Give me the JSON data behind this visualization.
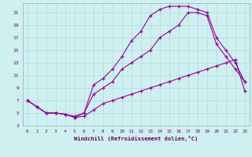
{
  "xlabel": "Windchill (Refroidissement éolien,°C)",
  "bg_color": "#cff0f0",
  "grid_color": "#aadddd",
  "line_color": "#990099",
  "xlim": [
    -0.5,
    23.5
  ],
  "ylim": [
    3,
    22.5
  ],
  "xticks": [
    0,
    1,
    2,
    3,
    4,
    5,
    6,
    7,
    8,
    9,
    10,
    11,
    12,
    13,
    14,
    15,
    16,
    17,
    18,
    19,
    20,
    21,
    22,
    23
  ],
  "yticks": [
    3,
    5,
    7,
    9,
    11,
    13,
    15,
    17,
    19,
    21
  ],
  "line1_x": [
    0,
    1,
    2,
    3,
    4,
    5,
    6,
    7,
    8,
    9,
    10,
    11,
    12,
    13,
    14,
    15,
    16,
    17,
    18,
    19,
    20,
    21,
    22,
    23
  ],
  "line1_y": [
    7,
    6,
    5,
    5,
    4.8,
    4.3,
    5,
    9.5,
    10.5,
    12,
    14,
    16.5,
    18,
    20.5,
    21.5,
    22,
    22,
    22,
    21.5,
    21,
    17,
    15,
    13,
    10
  ],
  "line2_x": [
    0,
    1,
    2,
    3,
    4,
    5,
    6,
    7,
    8,
    9,
    10,
    11,
    12,
    13,
    14,
    15,
    16,
    17,
    18,
    19,
    20,
    21,
    22,
    23
  ],
  "line2_y": [
    7,
    6,
    5,
    5,
    4.8,
    4.5,
    5,
    8,
    9,
    10,
    12,
    13,
    14,
    15,
    17,
    18,
    19,
    21,
    21,
    20.5,
    16,
    14,
    12,
    10
  ],
  "line3_x": [
    0,
    1,
    2,
    3,
    4,
    5,
    6,
    7,
    8,
    9,
    10,
    11,
    12,
    13,
    14,
    15,
    16,
    17,
    18,
    19,
    20,
    21,
    22,
    23
  ],
  "line3_y": [
    7,
    6,
    5,
    5,
    4.8,
    4.3,
    4.5,
    5.5,
    6.5,
    7,
    7.5,
    8,
    8.5,
    9,
    9.5,
    10,
    10.5,
    11,
    11.5,
    12,
    12.5,
    13,
    13.5,
    8.5
  ]
}
